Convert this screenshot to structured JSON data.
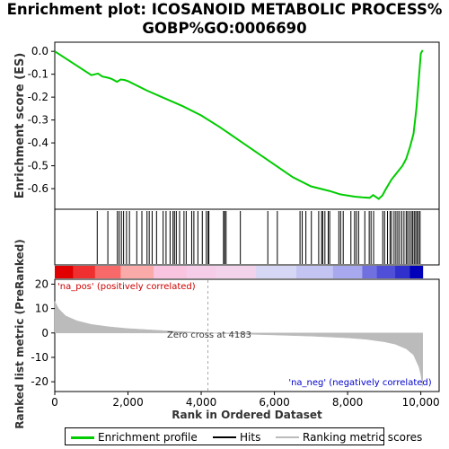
{
  "chart_data": {
    "type": "line",
    "title": "Enrichment plot: ICOSANOID METABOLIC PROCESS%\nGOBP%GO:0006690",
    "title_lines": [
      "Enrichment plot: ICOSANOID METABOLIC PROCESS%",
      "GOBP%GO:0006690"
    ],
    "es_panel": {
      "ylabel": "Enrichment score (ES)",
      "ylim": [
        -0.69,
        0.04
      ],
      "yticks": [
        0.0,
        -0.1,
        -0.2,
        -0.3,
        -0.4,
        -0.5,
        -0.6
      ],
      "ytick_labels": [
        "0.0",
        "-0.1",
        "-0.2",
        "-0.3",
        "-0.4",
        "-0.5",
        "-0.6"
      ],
      "series": [
        {
          "name": "Enrichment profile",
          "x": [
            0,
            1000,
            1180,
            1300,
            1450,
            1550,
            1700,
            1800,
            1900,
            2000,
            2500,
            3000,
            3500,
            4000,
            4500,
            5000,
            5500,
            6000,
            6500,
            7000,
            7500,
            7800,
            8000,
            8200,
            8400,
            8600,
            8700,
            8850,
            8950,
            9050,
            9200,
            9350,
            9500,
            9600,
            9700,
            9800,
            9880,
            9940,
            10000,
            10050
          ],
          "y": [
            0.0,
            -0.104,
            -0.097,
            -0.11,
            -0.115,
            -0.12,
            -0.133,
            -0.123,
            -0.125,
            -0.13,
            -0.17,
            -0.205,
            -0.24,
            -0.28,
            -0.33,
            -0.385,
            -0.44,
            -0.495,
            -0.55,
            -0.59,
            -0.61,
            -0.625,
            -0.63,
            -0.635,
            -0.638,
            -0.64,
            -0.628,
            -0.645,
            -0.63,
            -0.6,
            -0.56,
            -0.53,
            -0.5,
            -0.47,
            -0.42,
            -0.36,
            -0.25,
            -0.13,
            -0.01,
            0.005
          ]
        }
      ]
    },
    "hits_panel": {
      "hit_positions": [
        1160,
        1450,
        1710,
        1760,
        1820,
        1880,
        1960,
        2040,
        2240,
        2380,
        2520,
        2580,
        2660,
        2780,
        2960,
        3040,
        3150,
        3230,
        3270,
        3320,
        3410,
        3530,
        3590,
        3740,
        3800,
        3910,
        4030,
        4140,
        4190,
        4210,
        4610,
        4640,
        4680,
        5070,
        5820,
        6080,
        6700,
        6760,
        6860,
        7010,
        7210,
        7290,
        7320,
        7380,
        7470,
        7510,
        7760,
        7810,
        7880,
        8090,
        8190,
        8240,
        8300,
        8470,
        8590,
        8640,
        8710,
        8960,
        9010,
        9090,
        9160,
        9200,
        9270,
        9320,
        9370,
        9420,
        9480,
        9540,
        9600,
        9640,
        9690,
        9740,
        9780,
        9820,
        9860,
        9900,
        9940,
        9980
      ]
    },
    "ranked_metric_panel": {
      "ylabel": "Ranked list metric (PreRanked)",
      "ylim": [
        -24,
        22
      ],
      "yticks": [
        20,
        10,
        0,
        -10,
        -20
      ],
      "ytick_labels": [
        "20",
        "10",
        "0",
        "-10",
        "-20"
      ],
      "x": [
        0,
        100,
        300,
        600,
        1000,
        1500,
        2000,
        3000,
        4183,
        5000,
        6000,
        7000,
        8000,
        8500,
        9000,
        9300,
        9600,
        9800,
        9950,
        10000,
        10050
      ],
      "y": [
        13,
        10,
        7,
        5,
        3.5,
        2.5,
        1.8,
        0.9,
        0,
        -0.4,
        -0.8,
        -1.3,
        -2.0,
        -2.6,
        -3.6,
        -4.6,
        -6.5,
        -9,
        -14,
        -17,
        -22
      ],
      "zero_cross": 4183,
      "zero_cross_label": "Zero cross at 4183",
      "pos_label": "'na_pos' (positively correlated)",
      "neg_label": "'na_neg' (negatively correlated)"
    },
    "xlabel": "Rank in Ordered Dataset",
    "xlim": [
      0,
      10500
    ],
    "xticks": [
      0,
      2000,
      4000,
      6000,
      8000,
      10000
    ],
    "xtick_labels": [
      "0",
      "2,000",
      "4,000",
      "6,000",
      "8,000",
      "10,000"
    ],
    "legend": {
      "placement": "bottom",
      "items": [
        {
          "label": "Enrichment profile",
          "color": "#00cc00"
        },
        {
          "label": "Hits",
          "color": "#000000"
        },
        {
          "label": "Ranking metric scores",
          "color": "#bbbbbb"
        }
      ]
    },
    "colors": {
      "profile": "#00cc00",
      "metric_fill": "#bbbbbb",
      "pos_text": "#cc0000",
      "neg_text": "#0000cc",
      "zero_line": "#aaaaaa"
    },
    "color_bar": [
      {
        "from": 0,
        "to": 500,
        "color": "#e00000"
      },
      {
        "from": 500,
        "to": 1100,
        "color": "#f03030"
      },
      {
        "from": 1100,
        "to": 1800,
        "color": "#f86a6a"
      },
      {
        "from": 1800,
        "to": 2700,
        "color": "#fbaaaa"
      },
      {
        "from": 2700,
        "to": 3600,
        "color": "#f9c4e0"
      },
      {
        "from": 3600,
        "to": 4400,
        "color": "#f6cde8"
      },
      {
        "from": 4400,
        "to": 5500,
        "color": "#f3d3ec"
      },
      {
        "from": 5500,
        "to": 6600,
        "color": "#d6d6f5"
      },
      {
        "from": 6600,
        "to": 7600,
        "color": "#c4c4f2"
      },
      {
        "from": 7600,
        "to": 8400,
        "color": "#a8a8ee"
      },
      {
        "from": 8400,
        "to": 8800,
        "color": "#7070e0"
      },
      {
        "from": 8800,
        "to": 9300,
        "color": "#4f4fd8"
      },
      {
        "from": 9300,
        "to": 9700,
        "color": "#3030cc"
      },
      {
        "from": 9700,
        "to": 10050,
        "color": "#0000bb"
      }
    ]
  }
}
